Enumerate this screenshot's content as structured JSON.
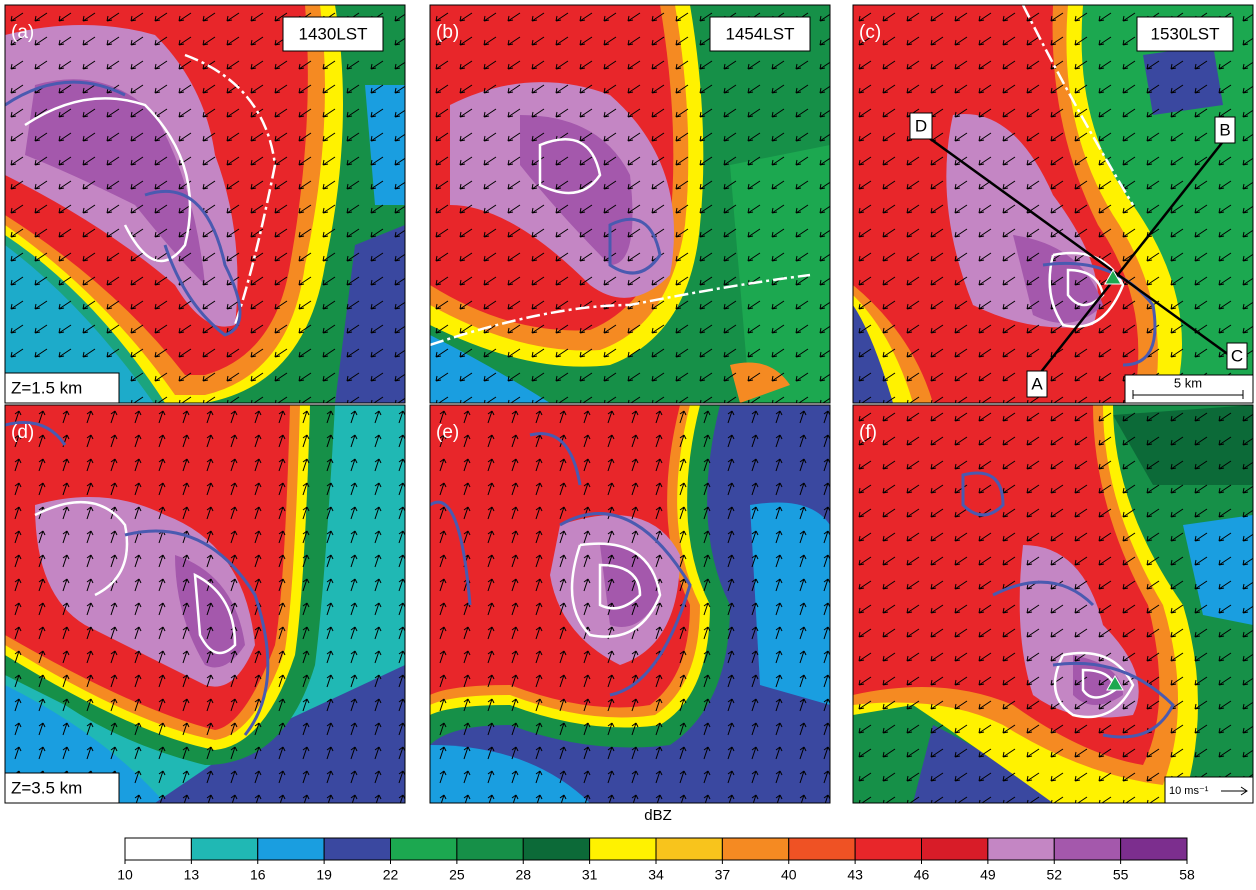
{
  "panels": {
    "labels": [
      "(a)",
      "(b)",
      "(c)",
      "(d)",
      "(e)",
      "(f)"
    ],
    "times": [
      "1430LST",
      "1454LST",
      "1530LST"
    ],
    "heights": [
      "Z=1.5 km",
      "Z=3.5 km"
    ],
    "section_points": [
      "A",
      "B",
      "C",
      "D"
    ],
    "distance_scale": "5 km",
    "vector_scale": "10 ms⁻¹"
  },
  "colorbar": {
    "label": "dBZ",
    "ticks": [
      10,
      13,
      16,
      19,
      22,
      25,
      28,
      31,
      34,
      37,
      40,
      43,
      46,
      49,
      52,
      55,
      58
    ],
    "colors": [
      "#ffffff",
      "#20b8b4",
      "#1a9ee0",
      "#3a48a0",
      "#1ca850",
      "#169048",
      "#0c6a38",
      "#fff200",
      "#f8c41c",
      "#f58a22",
      "#ef5224",
      "#e8262a",
      "#d81c28",
      "#c486c4",
      "#a458ac",
      "#7c2e8e"
    ]
  }
}
